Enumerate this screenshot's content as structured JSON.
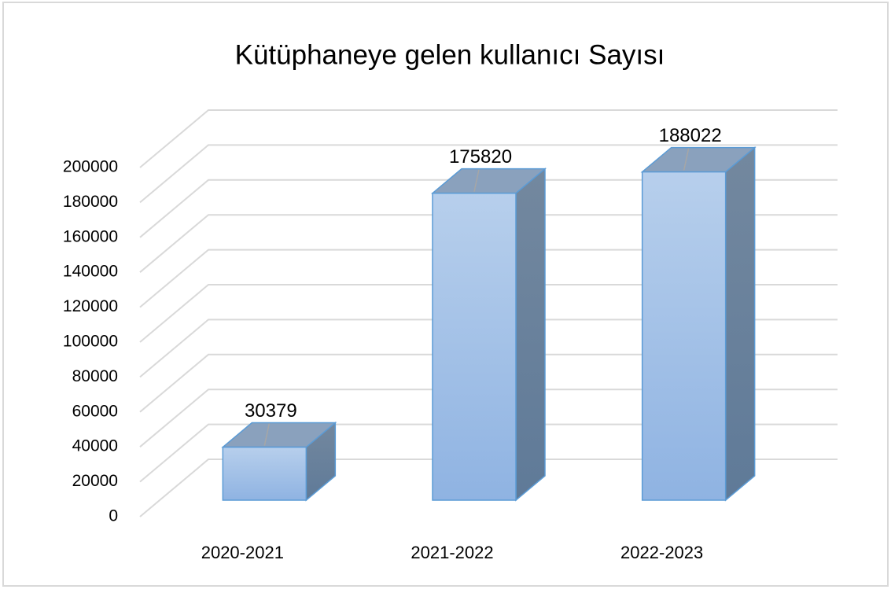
{
  "chart_data": {
    "type": "bar3d",
    "title": "Kütüphaneye gelen kullanıcı Sayısı",
    "categories": [
      "2020-2021",
      "2021-2022",
      "2022-2023"
    ],
    "values": [
      30379,
      175820,
      188022
    ],
    "color": "#9dbde6",
    "ylim": [
      0,
      200000
    ],
    "yticks": [
      0,
      20000,
      40000,
      60000,
      80000,
      100000,
      120000,
      140000,
      160000,
      180000,
      200000
    ],
    "grid": true
  }
}
